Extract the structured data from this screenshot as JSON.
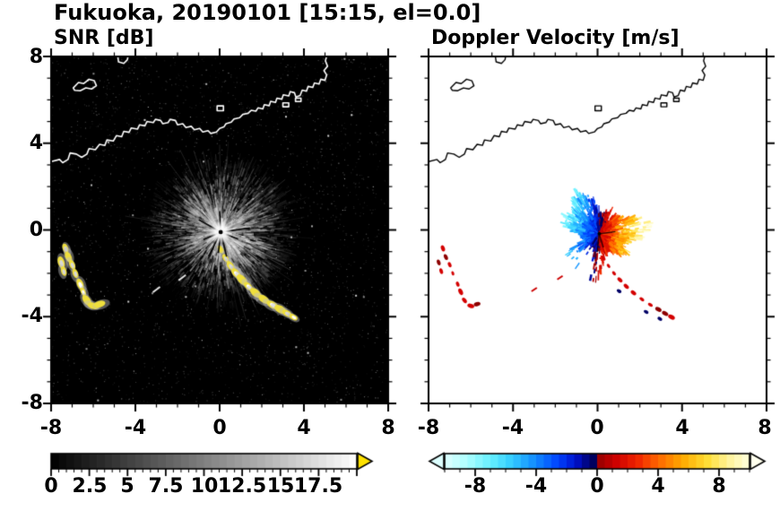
{
  "title": "Fukuoka, 20190101 [15:15, el=0.0]",
  "panels": {
    "snr": {
      "title": "SNR [dB]",
      "xticks": [
        "-8",
        "-4",
        "0",
        "4",
        "8"
      ],
      "background": "#000000"
    },
    "velocity": {
      "title": "Doppler Velocity [m/s]",
      "xticks": [
        "-8",
        "-4",
        "0",
        "4",
        "8"
      ],
      "background": "#ffffff"
    }
  },
  "axes": {
    "yticks": [
      "8",
      "4",
      "0",
      "-4",
      "-8"
    ],
    "xlim": [
      -8,
      8
    ],
    "ylim": [
      -8,
      8
    ],
    "major_step": 4,
    "minor_step": 1
  },
  "colorbars": {
    "snr": {
      "range": [
        0,
        20
      ],
      "tick_labels": [
        "0",
        "2.5",
        "5",
        "7.5",
        "10",
        "12.5",
        "15",
        "17.5"
      ],
      "tick_values": [
        0,
        2.5,
        5,
        7.5,
        10,
        12.5,
        15,
        17.5
      ],
      "minor_step": 0.5,
      "colormap": "grayscale",
      "over_color": "#ffe200"
    },
    "velocity": {
      "range": [
        -10,
        10
      ],
      "tick_labels": [
        "-8",
        "-4",
        "0",
        "4",
        "8"
      ],
      "tick_values": [
        -8,
        -4,
        0,
        4,
        8
      ],
      "minor_step": 1,
      "stops": [
        [
          0.0,
          "#dfffff"
        ],
        [
          0.07,
          "#b0ffff"
        ],
        [
          0.15,
          "#66f0ff"
        ],
        [
          0.22,
          "#33ccff"
        ],
        [
          0.3,
          "#1188ff"
        ],
        [
          0.37,
          "#0044ff"
        ],
        [
          0.43,
          "#0011cc"
        ],
        [
          0.48,
          "#000066"
        ],
        [
          0.495,
          "#000055"
        ],
        [
          0.505,
          "#990000"
        ],
        [
          0.56,
          "#cc0000"
        ],
        [
          0.63,
          "#ee2200"
        ],
        [
          0.7,
          "#ff6600"
        ],
        [
          0.78,
          "#ffaa00"
        ],
        [
          0.86,
          "#ffdd33"
        ],
        [
          0.93,
          "#fff399"
        ],
        [
          1.0,
          "#ffffdd"
        ]
      ],
      "under_color": "#ddffff",
      "over_color": "#ffffee"
    }
  },
  "map": {
    "coastlines": [
      [
        [
          -8,
          3.15
        ],
        [
          -7.6,
          3.25
        ],
        [
          -7.45,
          3.1
        ],
        [
          -7.2,
          3.25
        ],
        [
          -7.1,
          3.55
        ],
        [
          -6.8,
          3.5
        ],
        [
          -6.55,
          3.35
        ],
        [
          -6.3,
          3.5
        ],
        [
          -6.2,
          3.75
        ],
        [
          -5.9,
          3.7
        ],
        [
          -5.7,
          3.95
        ],
        [
          -5.45,
          3.9
        ],
        [
          -5.35,
          4.15
        ],
        [
          -5.05,
          4.1
        ],
        [
          -4.9,
          4.35
        ],
        [
          -4.65,
          4.3
        ],
        [
          -4.55,
          4.55
        ],
        [
          -4.3,
          4.5
        ],
        [
          -4.2,
          4.7
        ],
        [
          -3.9,
          4.65
        ],
        [
          -3.8,
          4.85
        ],
        [
          -3.55,
          4.8
        ],
        [
          -3.45,
          5.0
        ],
        [
          -3.15,
          4.95
        ],
        [
          -3.05,
          5.1
        ],
        [
          -2.8,
          5.05
        ],
        [
          -2.7,
          4.9
        ],
        [
          -2.45,
          4.95
        ],
        [
          -2.35,
          5.1
        ],
        [
          -2.1,
          5.05
        ],
        [
          -2.0,
          4.85
        ],
        [
          -1.75,
          4.9
        ],
        [
          -1.6,
          4.72
        ],
        [
          -1.35,
          4.78
        ],
        [
          -1.2,
          4.62
        ],
        [
          -0.95,
          4.68
        ],
        [
          -0.8,
          4.52
        ],
        [
          -0.55,
          4.58
        ],
        [
          -0.42,
          4.45
        ],
        [
          -0.15,
          4.52
        ],
        [
          0.0,
          4.68
        ],
        [
          0.2,
          4.75
        ],
        [
          0.3,
          4.9
        ],
        [
          0.55,
          4.97
        ],
        [
          0.68,
          5.12
        ],
        [
          0.95,
          5.18
        ],
        [
          1.1,
          5.33
        ],
        [
          1.35,
          5.38
        ],
        [
          1.5,
          5.52
        ],
        [
          1.72,
          5.48
        ],
        [
          1.82,
          5.63
        ],
        [
          2.05,
          5.58
        ],
        [
          2.12,
          5.78
        ],
        [
          2.35,
          5.73
        ],
        [
          2.42,
          5.93
        ],
        [
          2.65,
          5.88
        ],
        [
          2.72,
          6.08
        ],
        [
          2.95,
          6.03
        ],
        [
          3.02,
          6.23
        ],
        [
          3.28,
          6.18
        ],
        [
          3.35,
          6.38
        ],
        [
          3.55,
          6.33
        ],
        [
          3.62,
          6.13
        ],
        [
          3.82,
          6.2
        ],
        [
          3.92,
          6.45
        ],
        [
          4.12,
          6.4
        ],
        [
          4.2,
          6.62
        ],
        [
          4.42,
          6.57
        ],
        [
          4.5,
          6.78
        ],
        [
          4.72,
          6.73
        ],
        [
          4.8,
          6.95
        ],
        [
          5.0,
          6.9
        ],
        [
          5.08,
          7.15
        ],
        [
          4.95,
          7.35
        ],
        [
          5.12,
          7.55
        ],
        [
          5.02,
          7.8
        ],
        [
          5.1,
          8.1
        ]
      ],
      [
        [
          -4.85,
          8.1
        ],
        [
          -4.8,
          7.75
        ],
        [
          -4.55,
          7.68
        ],
        [
          -4.38,
          7.85
        ],
        [
          -4.33,
          8.1
        ]
      ]
    ],
    "islands": [
      [
        [
          -6.95,
          6.55
        ],
        [
          -6.7,
          6.8
        ],
        [
          -6.45,
          6.75
        ],
        [
          -6.2,
          6.95
        ],
        [
          -5.95,
          6.88
        ],
        [
          -5.85,
          6.65
        ],
        [
          -6.08,
          6.5
        ],
        [
          -6.35,
          6.55
        ],
        [
          -6.62,
          6.42
        ],
        [
          -6.88,
          6.44
        ]
      ],
      [
        [
          -0.12,
          5.5
        ],
        [
          0.18,
          5.5
        ],
        [
          0.18,
          5.72
        ],
        [
          -0.12,
          5.72
        ]
      ],
      [
        [
          3.0,
          5.68
        ],
        [
          3.28,
          5.68
        ],
        [
          3.28,
          5.86
        ],
        [
          3.0,
          5.86
        ]
      ],
      [
        [
          3.6,
          5.92
        ],
        [
          3.86,
          5.92
        ],
        [
          3.86,
          6.08
        ],
        [
          3.6,
          6.08
        ]
      ]
    ]
  },
  "echoes": {
    "snr_center": [
      0.05,
      -0.1
    ],
    "vel_center": [
      0.08,
      -0.18
    ],
    "clutter_chains": [
      [
        [
          -7.32,
          -0.85
        ],
        [
          -7.18,
          -1.25
        ],
        [
          -7.0,
          -1.6
        ],
        [
          -6.85,
          -2.0
        ]
      ],
      [
        [
          -7.52,
          -1.5
        ],
        [
          -7.4,
          -1.9
        ]
      ],
      [
        [
          -6.62,
          -2.5
        ],
        [
          -6.48,
          -2.85
        ],
        [
          -6.3,
          -3.25
        ],
        [
          -6.0,
          -3.5
        ],
        [
          -5.7,
          -3.42
        ]
      ],
      [
        [
          0.05,
          -0.9
        ],
        [
          0.28,
          -1.3
        ],
        [
          0.52,
          -1.66
        ],
        [
          0.78,
          -2.0
        ],
        [
          1.06,
          -2.3
        ],
        [
          1.36,
          -2.6
        ],
        [
          1.7,
          -2.9
        ],
        [
          2.1,
          -3.2
        ],
        [
          2.5,
          -3.45
        ],
        [
          2.88,
          -3.66
        ],
        [
          3.2,
          -3.85
        ],
        [
          3.5,
          -4.02
        ]
      ]
    ],
    "clutter_marks": [
      [
        -1.78,
        -2.2
      ],
      [
        -3.0,
        -2.75
      ]
    ],
    "vel_navy_spots": [
      [
        1.02,
        -2.82
      ],
      [
        2.3,
        -3.78
      ],
      [
        2.95,
        -4.1
      ]
    ]
  },
  "chart_data": [
    {
      "type": "heatmap",
      "figure_title": "Fukuoka, 20190101 [15:15, el=0.0]",
      "title": "SNR [dB]",
      "xlabel": "",
      "ylabel": "",
      "xlim": [
        -8,
        8
      ],
      "ylim": [
        -8,
        8
      ],
      "xticks": [
        -8,
        -4,
        0,
        4,
        8
      ],
      "yticks": [
        8,
        4,
        0,
        -4,
        -8
      ],
      "grid": false,
      "colorbar": {
        "orientation": "horizontal",
        "range": [
          0,
          20
        ],
        "ticks": [
          0,
          2.5,
          5,
          7.5,
          10,
          12.5,
          15,
          17.5
        ],
        "colormap": "black-to-white grayscale",
        "over_arrow_color": "#ffe200"
      },
      "description": "Radar SNR field on black background: grayscale radial echo streaks centered on the radar at (0,-0.1), dense bright core within ~1 km, faint rays to ~4 km, thin blocked (black) spokes. High-SNR yellow/white ground-clutter arcs at lower-left (x -7.5..-5.7, y -0.8..-3.5) and a curved arc from (0,-0.9) to (3.5,-4.0). White coastline overlay across the top (y ~3..8) with island near (-6.4,6.7) and harbor piers near (3,6)."
    },
    {
      "type": "heatmap",
      "title": "Doppler Velocity [m/s]",
      "xlabel": "",
      "ylabel": "",
      "xlim": [
        -8,
        8
      ],
      "ylim": [
        -8,
        8
      ],
      "xticks": [
        -8,
        -4,
        0,
        4,
        8
      ],
      "yticks": [
        8,
        4,
        0,
        -4,
        -8
      ],
      "grid": false,
      "colorbar": {
        "orientation": "horizontal",
        "range": [
          -10,
          10
        ],
        "ticks": [
          -8,
          -4,
          0,
          4,
          8
        ],
        "colormap": "diverging pale-cyan/blue/navy to dark-red/orange/yellow/white",
        "under_arrow_color": "#ddffff",
        "over_arrow_color": "#ffffee"
      },
      "description": "Doppler velocity on white background: negative (cyan/blue/navy) lobe up-left of radar center (0.08,-0.18), positive (red/orange/yellow) lobe to the east-southeast, magnitude increasing outward to ~±9 m/s at r~2.2 km. Scattered red clutter echoes (with a few navy spots) along lower-left cluster and along the south-east arc; black coastline overlay identical to SNR panel."
    }
  ]
}
